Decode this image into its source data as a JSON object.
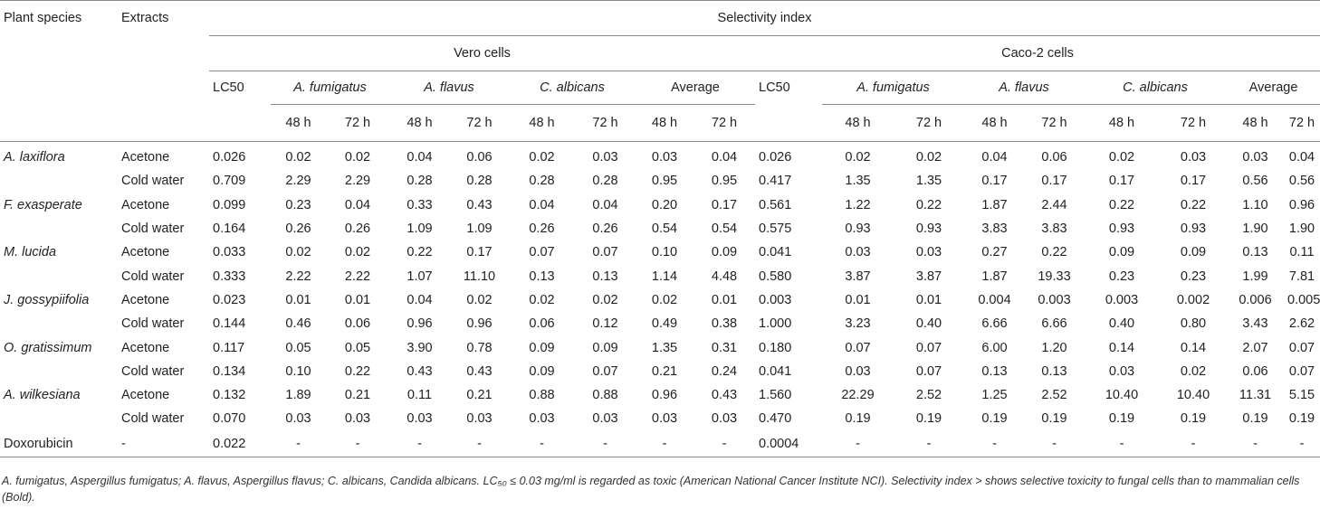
{
  "headers": {
    "plant_species": "Plant species",
    "extracts": "Extracts",
    "selectivity_index": "Selectivity index",
    "vero": "Vero cells",
    "caco": "Caco-2 cells",
    "lc50": "LC50",
    "fumigatus": "A. fumigatus",
    "flavus": "A. flavus",
    "albicans": "C. albicans",
    "average": "Average",
    "h48": "48 h",
    "h72": "72 h"
  },
  "rows": [
    {
      "species": "A. laxiflora",
      "extract": "Acetone",
      "cells": [
        "0.026",
        "0.02",
        "0.02",
        "0.04",
        "0.06",
        "0.02",
        "0.03",
        "0.03",
        "0.04",
        "0.026",
        "0.02",
        "0.02",
        "0.04",
        "0.06",
        "0.02",
        "0.03",
        "0.03",
        "0.04"
      ],
      "bold": []
    },
    {
      "species": "",
      "extract": "Cold water",
      "cells": [
        "0.709",
        "2.29",
        "2.29",
        "0.28",
        "0.28",
        "0.28",
        "0.28",
        "0.95",
        "0.95",
        "0.417",
        "1.35",
        "1.35",
        "0.17",
        "0.17",
        "0.17",
        "0.17",
        "0.56",
        "0.56"
      ],
      "bold": [
        1,
        2,
        10,
        11
      ]
    },
    {
      "species": "F. exasperate",
      "extract": "Acetone",
      "cells": [
        "0.099",
        "0.23",
        "0.04",
        "0.33",
        "0.43",
        "0.04",
        "0.04",
        "0.20",
        "0.17",
        "0.561",
        "1.22",
        "0.22",
        "1.87",
        "2.44",
        "0.22",
        "0.22",
        "1.10",
        "0.96"
      ],
      "bold": [
        10,
        12,
        13,
        16
      ]
    },
    {
      "species": "",
      "extract": "Cold water",
      "cells": [
        "0.164",
        "0.26",
        "0.26",
        "1.09",
        "1.09",
        "0.26",
        "0.26",
        "0.54",
        "0.54",
        "0.575",
        "0.93",
        "0.93",
        "3.83",
        "3.83",
        "0.93",
        "0.93",
        "1.90",
        "1.90"
      ],
      "bold": [
        3,
        4,
        12,
        13,
        16,
        17
      ]
    },
    {
      "species": "M. lucida",
      "extract": "Acetone",
      "cells": [
        "0.033",
        "0.02",
        "0.02",
        "0.22",
        "0.17",
        "0.07",
        "0.07",
        "0.10",
        "0.09",
        "0.041",
        "0.03",
        "0.03",
        "0.27",
        "0.22",
        "0.09",
        "0.09",
        "0.13",
        "0.11"
      ],
      "bold": []
    },
    {
      "species": "",
      "extract": "Cold water",
      "cells": [
        "0.333",
        "2.22",
        "2.22",
        "1.07",
        "11.10",
        "0.13",
        "0.13",
        "1.14",
        "4.48",
        "0.580",
        "3.87",
        "3.87",
        "1.87",
        "19.33",
        "0.23",
        "0.23",
        "1.99",
        "7.81"
      ],
      "bold": [
        3,
        4,
        7,
        8,
        10,
        11,
        12,
        13,
        16,
        17
      ]
    },
    {
      "species": "J. gossypiifolia",
      "extract": "Acetone",
      "cells": [
        "0.023",
        "0.01",
        "0.01",
        "0.04",
        "0.02",
        "0.02",
        "0.02",
        "0.02",
        "0.01",
        "0.003",
        "0.01",
        "0.01",
        "0.004",
        "0.003",
        "0.003",
        "0.002",
        "0.006",
        "0.005"
      ],
      "bold": []
    },
    {
      "species": "",
      "extract": "Cold water",
      "cells": [
        "0.144",
        "0.46",
        "0.06",
        "0.96",
        "0.96",
        "0.06",
        "0.12",
        "0.49",
        "0.38",
        "1.000",
        "3.23",
        "0.40",
        "6.66",
        "6.66",
        "0.40",
        "0.80",
        "3.43",
        "2.62"
      ],
      "bold": [
        16,
        17
      ]
    },
    {
      "species": "O. gratissimum",
      "extract": "Acetone",
      "cells": [
        "0.117",
        "0.05",
        "0.05",
        "3.90",
        "0.78",
        "0.09",
        "0.09",
        "1.35",
        "0.31",
        "0.180",
        "0.07",
        "0.07",
        "6.00",
        "1.20",
        "0.14",
        "0.14",
        "2.07",
        "0.07"
      ],
      "bold": [
        7,
        8,
        12,
        13,
        16
      ]
    },
    {
      "species": "",
      "extract": "Cold water",
      "cells": [
        "0.134",
        "0.10",
        "0.22",
        "0.43",
        "0.43",
        "0.09",
        "0.07",
        "0.21",
        "0.24",
        "0.041",
        "0.03",
        "0.07",
        "0.13",
        "0.13",
        "0.03",
        "0.02",
        "0.06",
        "0.07"
      ],
      "bold": []
    },
    {
      "species": "A. wilkesiana",
      "extract": "Acetone",
      "cells": [
        "0.132",
        "1.89",
        "0.21",
        "0.11",
        "0.21",
        "0.88",
        "0.88",
        "0.96",
        "0.43",
        "1.560",
        "22.29",
        "2.52",
        "1.25",
        "2.52",
        "10.40",
        "10.40",
        "11.31",
        "5.15"
      ],
      "bold": [
        1,
        10,
        11,
        12,
        13,
        14,
        15,
        16,
        17
      ]
    },
    {
      "species": "",
      "extract": "Cold water",
      "cells": [
        "0.070",
        "0.03",
        "0.03",
        "0.03",
        "0.03",
        "0.03",
        "0.03",
        "0.03",
        "0.03",
        "0.470",
        "0.19",
        "0.19",
        "0.19",
        "0.19",
        "0.19",
        "0.19",
        "0.19",
        "0.19"
      ],
      "bold": []
    },
    {
      "species": "Doxorubicin",
      "extract": "-",
      "cells": [
        "0.022",
        "-",
        "-",
        "-",
        "-",
        "-",
        "-",
        "-",
        "-",
        "0.0004",
        "-",
        "-",
        "-",
        "-",
        "-",
        "-",
        "-",
        "-"
      ],
      "bold": []
    }
  ],
  "footnote": "A. fumigatus, Aspergillus fumigatus; A. flavus, Aspergillus flavus; C. albicans, Candida albicans. LC₅₀ ≤ 0.03 mg/ml is regarded as toxic (American National Cancer Institute NCI). Selectivity index > shows selective toxicity to fungal cells than to mammalian cells (Bold)."
}
